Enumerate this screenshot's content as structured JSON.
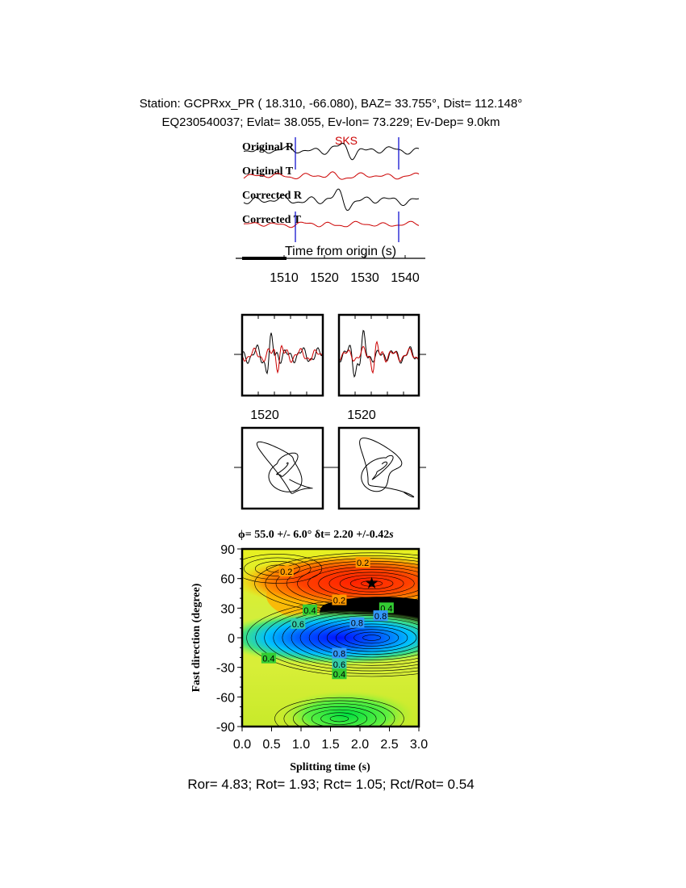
{
  "header": {
    "line1": "Station: GCPRxx_PR (  18.310,  -66.080), BAZ=   33.755°, Dist=  112.148°",
    "line2": "EQ230540037; Evlat=  38.055, Ev-lon=  73.229; Ev-Dep=  9.0km"
  },
  "traces": {
    "labels": [
      "Original R",
      "Original T",
      "Corrected R",
      "Corrected T"
    ],
    "phase_label": "SKS",
    "xlabel": "Time from origin (s)",
    "ticks": [
      "1510",
      "1520",
      "1530",
      "1540"
    ],
    "colors": {
      "radial": "#000000",
      "transverse": "#cc0000",
      "window": "#0000cc"
    }
  },
  "waveform_panels": {
    "ticks": [
      "1520",
      "1520"
    ]
  },
  "grid_search": {
    "title_phi": "ϕ= 55.0 +/- 6.0° ",
    "title_dt": "δt= 2.20 +/-0.42",
    "title_unit": "s",
    "ylabel": "Fast direction (degree)",
    "xlabel": "Splitting time (s)"
  },
  "chart_data": {
    "type": "heatmap",
    "title": "ϕ= 55.0 +/- 6.0° δt= 2.20 +/-0.42s",
    "xlabel": "Splitting time (s)",
    "ylabel": "Fast direction (degree)",
    "xlim": [
      0.0,
      3.0
    ],
    "ylim": [
      -90,
      90
    ],
    "x_ticks": [
      "0.0",
      "0.5",
      "1.0",
      "1.5",
      "2.0",
      "2.5",
      "3.0"
    ],
    "y_ticks": [
      "90",
      "60",
      "30",
      "0",
      "-30",
      "-60",
      "-90"
    ],
    "best_fit": {
      "splitting_time_s": 2.2,
      "fast_direction_deg": 55.0
    },
    "contour_labels": [
      {
        "text": "0.2",
        "x": 0.75,
        "y": 67
      },
      {
        "text": "0.2",
        "x": 2.05,
        "y": 76
      },
      {
        "text": "0.2",
        "x": 1.65,
        "y": 38
      },
      {
        "text": "0.4",
        "x": 1.15,
        "y": 28
      },
      {
        "text": "0.4",
        "x": 2.45,
        "y": 30
      },
      {
        "text": "0.6",
        "x": 0.95,
        "y": 14
      },
      {
        "text": "0.8",
        "x": 1.95,
        "y": 15
      },
      {
        "text": "0.8",
        "x": 2.35,
        "y": 22
      },
      {
        "text": "0.8",
        "x": 1.65,
        "y": -16
      },
      {
        "text": "0.6",
        "x": 1.65,
        "y": -27
      },
      {
        "text": "0.4",
        "x": 1.65,
        "y": -37
      },
      {
        "text": "0.4",
        "x": 0.45,
        "y": -21
      }
    ]
  },
  "footer": {
    "text": "Ror= 4.83; Rot= 1.93; Rct= 1.05; Rct/Rot= 0.54"
  }
}
